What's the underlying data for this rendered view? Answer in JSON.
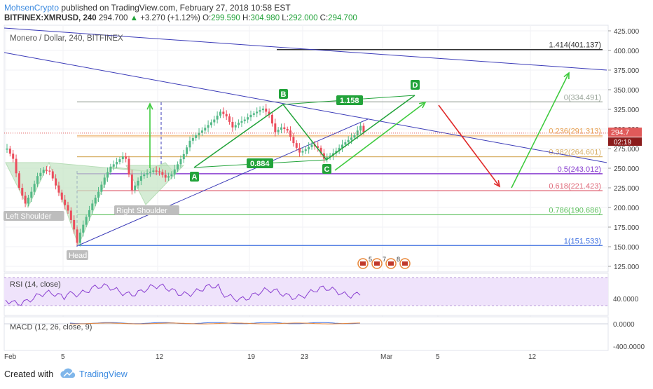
{
  "header": {
    "author": "MohsenCrypto",
    "published_text": "published on TradingView.com, February 27, 2018 10:58 EST",
    "symbol": "BITFINEX:XMRUSD, 240",
    "last": "294.700",
    "change": "+3.270 (+1.12%)",
    "o_label": "O:",
    "o": "299.590",
    "h_label": "H:",
    "h": "304.980",
    "l_label": "L:",
    "l": "292.000",
    "c_label": "C:",
    "c": "294.700"
  },
  "chart_title": "Monero / Dollar, 240, BITFINEX",
  "chart_data": {
    "type": "candlestick",
    "y_axis": {
      "min": 125,
      "max": 425,
      "ticks": [
        "425.000",
        "400.000",
        "375.000",
        "350.000",
        "325.000",
        "300.000",
        "275.000",
        "250.000",
        "225.000",
        "200.000",
        "175.000",
        "150.000",
        "125.000"
      ]
    },
    "x_axis": {
      "ticks": [
        "Feb",
        "5",
        "12",
        "19",
        "23",
        "Mar",
        "5",
        "12"
      ]
    },
    "price_now": 294.7,
    "countdown": "02:19",
    "close_path": [
      [
        0,
        275
      ],
      [
        2,
        262
      ],
      [
        4,
        225
      ],
      [
        6,
        205
      ],
      [
        8,
        220
      ],
      [
        10,
        240
      ],
      [
        12,
        248
      ],
      [
        14,
        246
      ],
      [
        16,
        228
      ],
      [
        18,
        210
      ],
      [
        20,
        196
      ],
      [
        22,
        172
      ],
      [
        23,
        155
      ],
      [
        24,
        168
      ],
      [
        26,
        188
      ],
      [
        28,
        205
      ],
      [
        30,
        220
      ],
      [
        32,
        238
      ],
      [
        34,
        252
      ],
      [
        36,
        258
      ],
      [
        38,
        265
      ],
      [
        39,
        262
      ],
      [
        40,
        242
      ],
      [
        41,
        222
      ],
      [
        42,
        228
      ],
      [
        44,
        240
      ],
      [
        46,
        244
      ],
      [
        48,
        247
      ],
      [
        50,
        245
      ],
      [
        52,
        238
      ],
      [
        54,
        242
      ],
      [
        56,
        255
      ],
      [
        58,
        268
      ],
      [
        60,
        285
      ],
      [
        62,
        292
      ],
      [
        64,
        298
      ],
      [
        66,
        305
      ],
      [
        68,
        312
      ],
      [
        70,
        322
      ],
      [
        72,
        316
      ],
      [
        74,
        302
      ],
      [
        76,
        308
      ],
      [
        78,
        312
      ],
      [
        80,
        318
      ],
      [
        82,
        322
      ],
      [
        84,
        326
      ],
      [
        86,
        318
      ],
      [
        88,
        296
      ],
      [
        90,
        302
      ],
      [
        92,
        298
      ],
      [
        94,
        282
      ],
      [
        96,
        270
      ],
      [
        98,
        274
      ],
      [
        100,
        280
      ],
      [
        102,
        276
      ],
      [
        104,
        262
      ],
      [
        106,
        266
      ],
      [
        108,
        272
      ],
      [
        110,
        280
      ],
      [
        112,
        286
      ],
      [
        114,
        292
      ],
      [
        116,
        304
      ],
      [
        117,
        296
      ]
    ],
    "fib_levels": [
      {
        "ratio": 1.414,
        "label": "1.414(401.137)",
        "value": 401.137,
        "color": "#333333"
      },
      {
        "ratio": 0,
        "label": "0(334.491)",
        "value": 334.491,
        "color": "#9aa59a"
      },
      {
        "ratio": 0.236,
        "label": "0.236(291.313)",
        "value": 291.313,
        "color": "#e8a050"
      },
      {
        "ratio": 0.382,
        "label": "0.382(264.601)",
        "value": 264.601,
        "color": "#d9b26a"
      },
      {
        "ratio": 0.5,
        "label": "0.5(243.012)",
        "value": 243.012,
        "color": "#8a3fd1"
      },
      {
        "ratio": 0.618,
        "label": "0.618(221.423)",
        "value": 221.423,
        "color": "#e06a7a"
      },
      {
        "ratio": 0.786,
        "label": "0.786(190.686)",
        "value": 190.686,
        "color": "#5cc05c"
      },
      {
        "ratio": 1,
        "label": "1(151.533)",
        "value": 151.533,
        "color": "#3d6fe0"
      }
    ],
    "pattern_labels": [
      "A",
      "B",
      "C",
      "D"
    ],
    "ratio_labels": [
      "0.884",
      "1.158"
    ],
    "hs_labels": [
      "Left Shoulder",
      "Head",
      "Right Shoulder"
    ],
    "rsi": {
      "title": "RSI (14, close)",
      "tick": "40.0000"
    },
    "macd": {
      "title": "MACD (12, 26, close, 9)",
      "ticks": [
        "0.0000",
        "-400.0000"
      ]
    },
    "events": [
      "5",
      "7",
      "8"
    ]
  },
  "footer": {
    "created_with": "Created with",
    "brand": "TradingView"
  }
}
